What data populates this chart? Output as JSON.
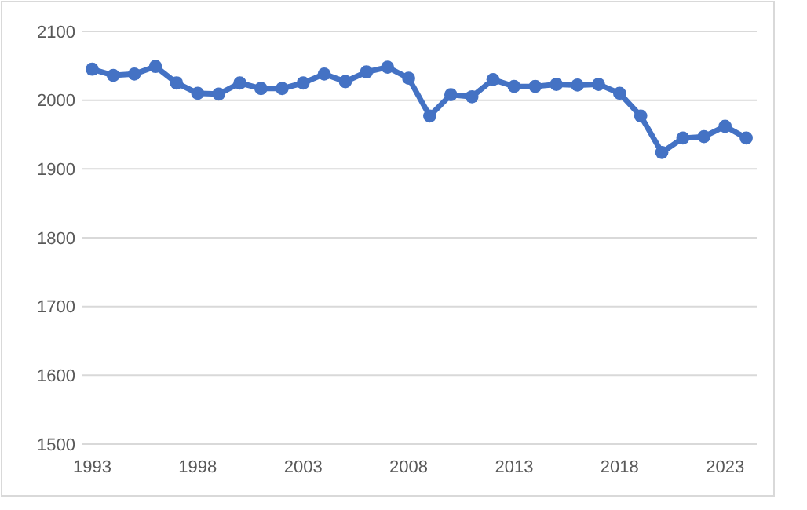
{
  "chart_data": {
    "type": "line",
    "x": [
      1993,
      1994,
      1995,
      1996,
      1997,
      1998,
      1999,
      2000,
      2001,
      2002,
      2003,
      2004,
      2005,
      2006,
      2007,
      2008,
      2009,
      2010,
      2011,
      2012,
      2013,
      2014,
      2015,
      2016,
      2017,
      2018,
      2019,
      2020,
      2021,
      2022,
      2023,
      2024
    ],
    "series": [
      {
        "color": "#4472c4",
        "values": [
          2045,
          2036,
          2038,
          2049,
          2025,
          2010,
          2009,
          2025,
          2017,
          2017,
          2025,
          2038,
          2027,
          2041,
          2048,
          2032,
          1977,
          2008,
          2005,
          2030,
          2020,
          2020,
          2023,
          2022,
          2023,
          2010,
          1977,
          1924,
          1945,
          1947,
          1962,
          1945
        ]
      }
    ],
    "xlim": [
      1992.5,
      2024.5
    ],
    "xticks": [
      1993,
      1998,
      2003,
      2008,
      2013,
      2018,
      2023
    ],
    "ylim": [
      1500,
      2100
    ],
    "yticks": [
      1500,
      1600,
      1700,
      1800,
      1900,
      2000,
      2100
    ],
    "grid": "y",
    "marker": "circle",
    "line_style": "solid"
  }
}
